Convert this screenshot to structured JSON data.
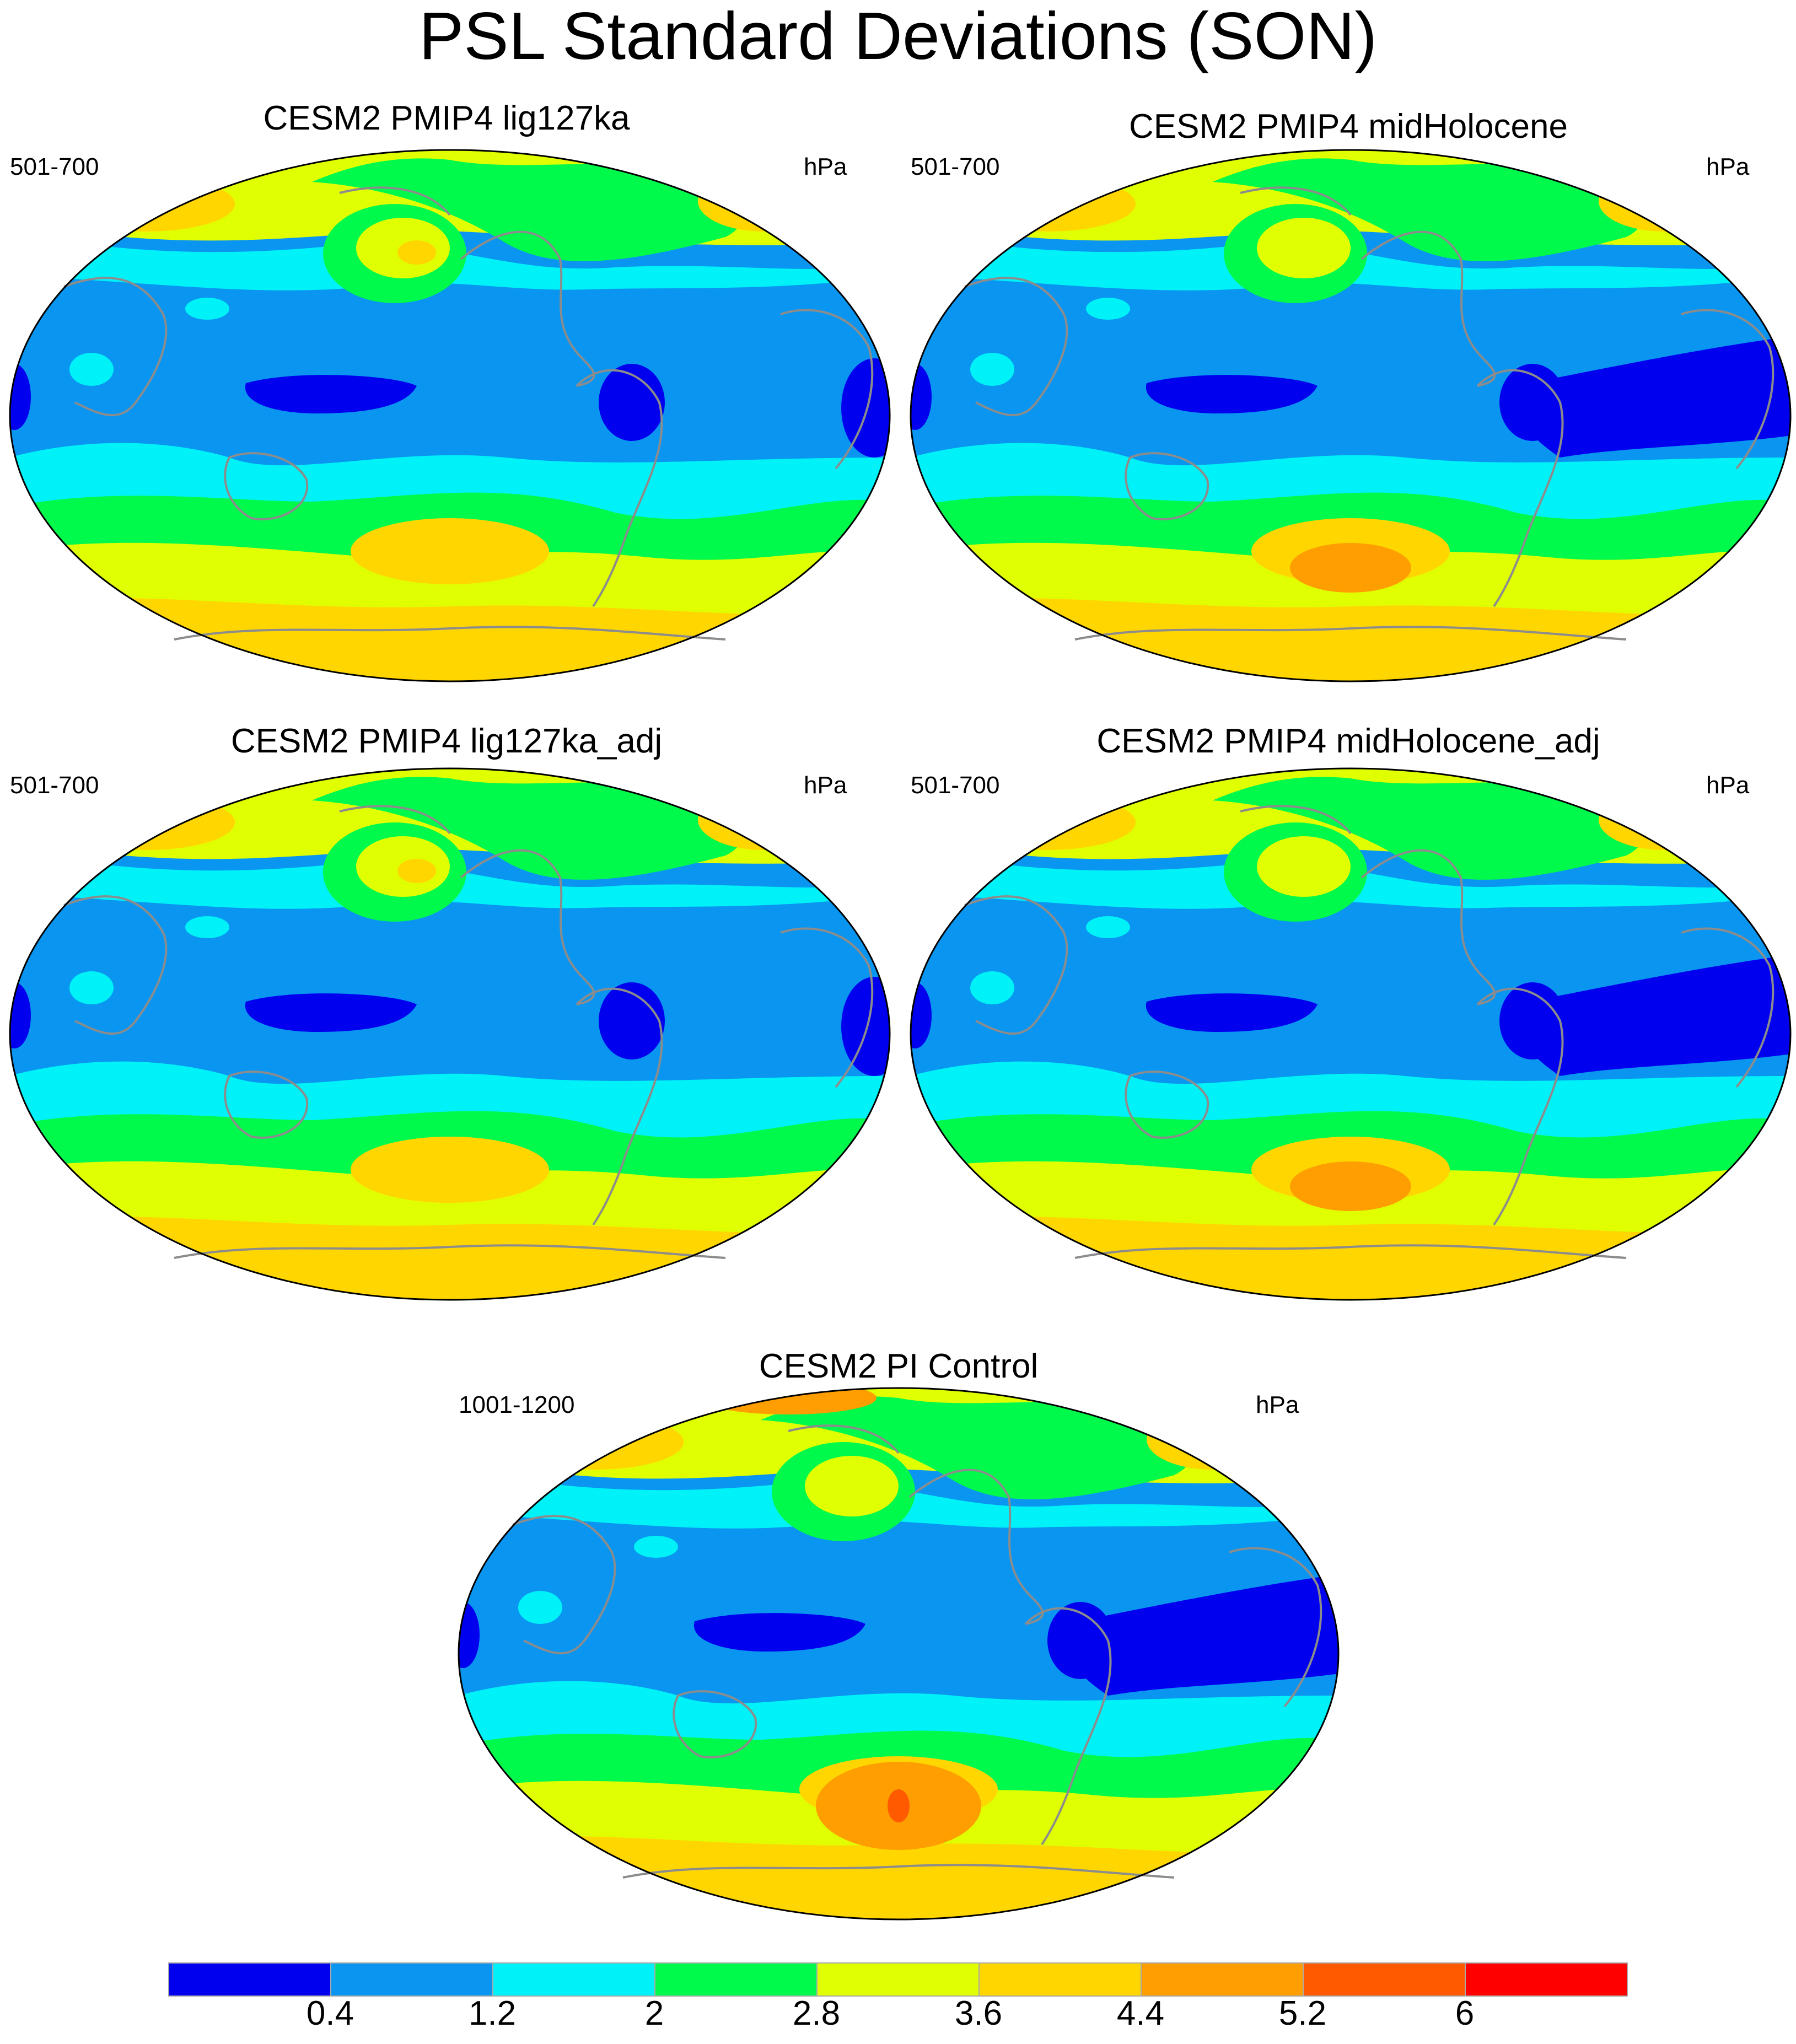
{
  "title": "PSL Standard Deviations (SON)",
  "colors": {
    "levels": [
      "#0000ef",
      "#0a96f0",
      "#00f2f9",
      "#00fa4c",
      "#e0ff00",
      "#ffd600",
      "#ff9e00",
      "#ff5a00",
      "#ff0000"
    ],
    "coast": "#8c8c8c",
    "outline": "#000000"
  },
  "panels": [
    {
      "title": "CESM2 PMIP4 lig127ka",
      "left": "501-700",
      "right": "hPa"
    },
    {
      "title": "CESM2 PMIP4 midHolocene",
      "left": "501-700",
      "right": "hPa"
    },
    {
      "title": "CESM2 PMIP4 lig127ka_adj",
      "left": "501-700",
      "right": "hPa"
    },
    {
      "title": "CESM2 PMIP4 midHolocene_adj",
      "left": "501-700",
      "right": "hPa"
    },
    {
      "title": "CESM2 PI Control",
      "left": "1001-1200",
      "right": "hPa"
    }
  ],
  "colorbar": {
    "labels": [
      "0.4",
      "1.2",
      "2",
      "2.8",
      "3.6",
      "4.4",
      "5.2",
      "6"
    ]
  }
}
